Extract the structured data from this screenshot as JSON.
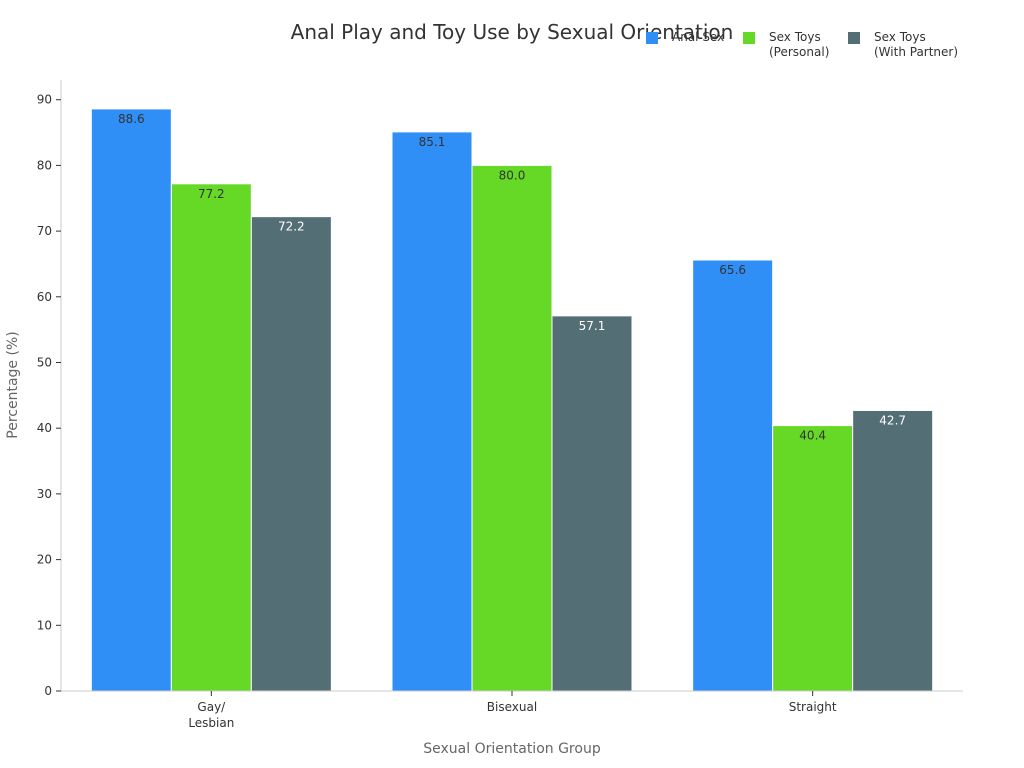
{
  "chart_data": {
    "type": "bar",
    "title": "Anal Play and Toy Use by Sexual Orientation",
    "xlabel": "Sexual Orientation Group",
    "ylabel": "Percentage (%)",
    "categories": [
      "Gay/\nLesbian",
      "Bisexual",
      "Straight"
    ],
    "ylim": [
      0,
      93
    ],
    "yticks": [
      0,
      10,
      20,
      30,
      40,
      50,
      60,
      70,
      80,
      90
    ],
    "grid": false,
    "legend_position": "top-right",
    "series": [
      {
        "name": "Anal Sex",
        "values": [
          88.6,
          85.1,
          65.6
        ],
        "color": "#2f8ff6",
        "label_color": "#333333"
      },
      {
        "name": "Sex Toys\n(Personal)",
        "values": [
          77.2,
          80.0,
          40.4
        ],
        "color": "#66d926",
        "label_color": "#333333"
      },
      {
        "name": "Sex Toys\n(With Partner)",
        "values": [
          72.2,
          57.1,
          42.7
        ],
        "color": "#546e76",
        "label_color": "#ffffff"
      }
    ]
  }
}
